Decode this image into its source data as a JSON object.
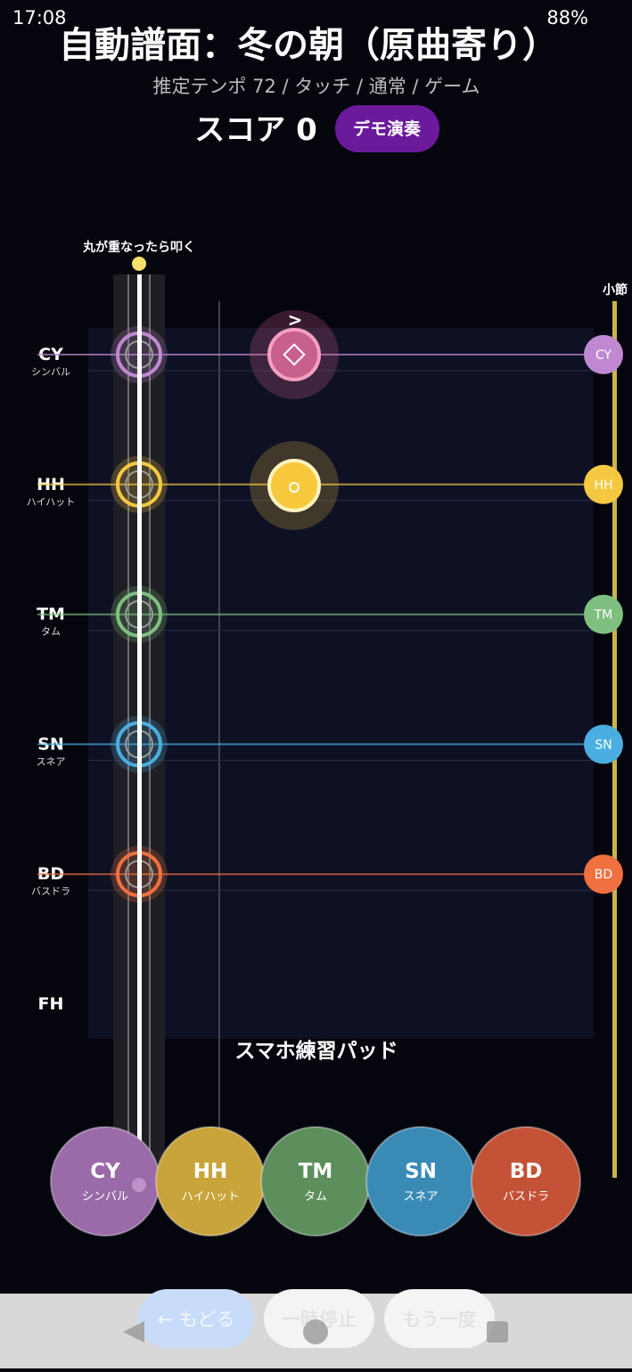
{
  "status_bar": {
    "time": "17:08",
    "battery": "88%"
  },
  "header": {
    "title": "自動譜面：冬の朝（原曲寄り）",
    "subtitle": "推定テンポ 72 / タッチ / 通常 / ゲーム",
    "score": "スコア 0",
    "demo_button": "デモ演奏"
  },
  "field": {
    "hint": "丸が重なったら叩く",
    "measure_label": "小節",
    "pad_label": "スマホ練習パッド"
  },
  "lanes": [
    {
      "code": "CY",
      "name": "シンバル"
    },
    {
      "code": "HH",
      "name": "ハイハット"
    },
    {
      "code": "TM",
      "name": "タム"
    },
    {
      "code": "SN",
      "name": "スネア"
    },
    {
      "code": "BD",
      "name": "バスドラ"
    },
    {
      "code": "FH"
    }
  ],
  "notes": [
    {
      "accent": ">"
    }
  ],
  "buttons": {
    "back": "← もどる",
    "pause": "一時停止",
    "retry": "もう一度"
  }
}
